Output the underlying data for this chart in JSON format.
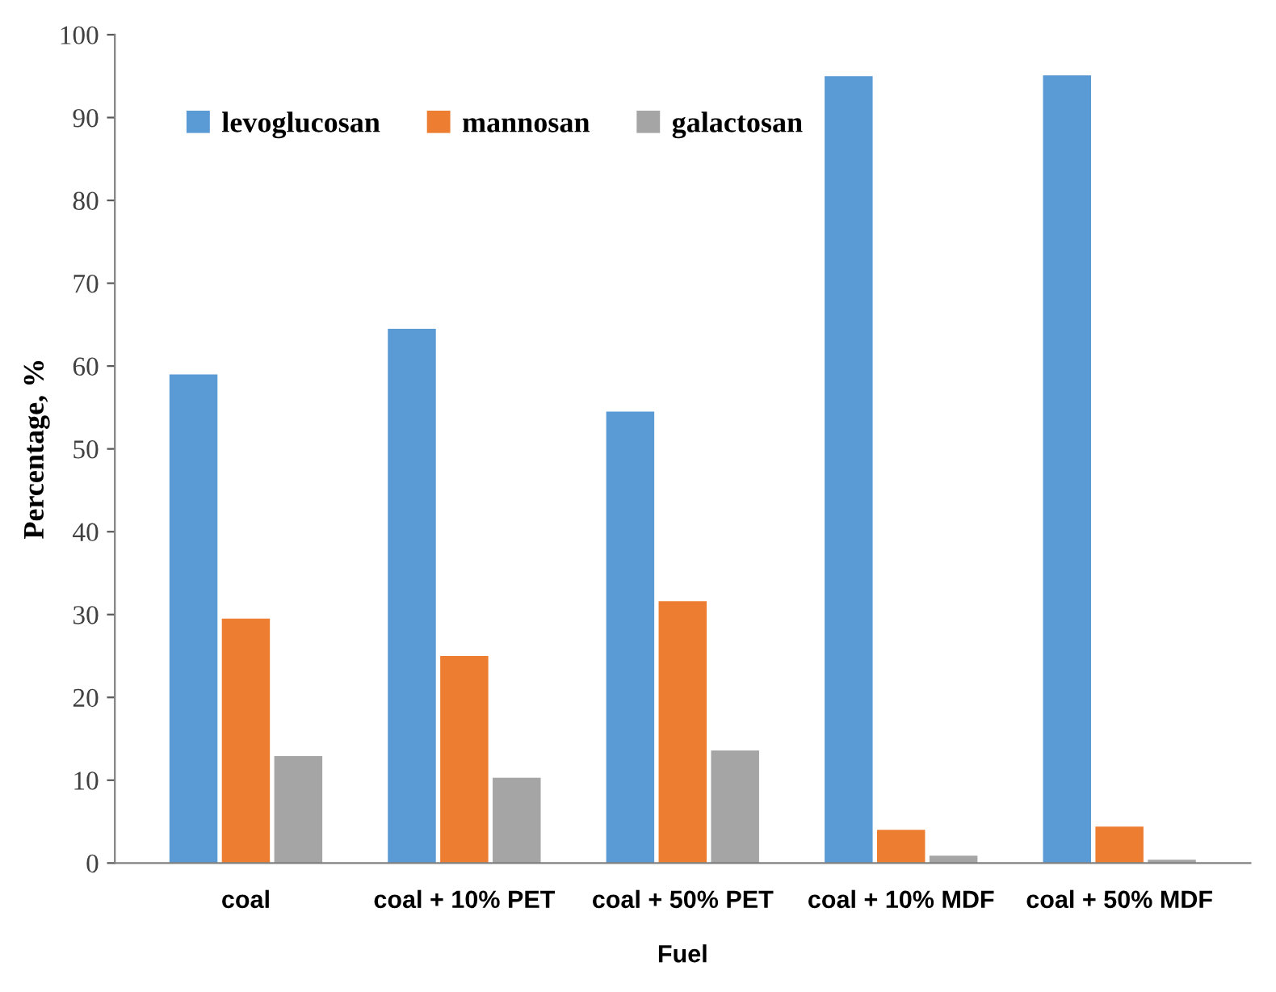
{
  "chart_data": {
    "type": "bar",
    "xlabel": "Fuel",
    "ylabel": "Percentage, %",
    "categories": [
      "coal",
      "coal + 10% PET",
      "coal + 50% PET",
      "coal + 10% MDF",
      "coal + 50% MDF"
    ],
    "series": [
      {
        "name": "levoglucosan",
        "color": "#5b9bd5",
        "values": [
          59.0,
          64.5,
          54.5,
          95.0,
          95.1
        ]
      },
      {
        "name": "mannosan",
        "color": "#ed7d31",
        "values": [
          29.5,
          25.0,
          31.6,
          4.0,
          4.4
        ]
      },
      {
        "name": "galactosan",
        "color": "#a5a5a5",
        "values": [
          12.9,
          10.3,
          13.6,
          0.9,
          0.4
        ]
      }
    ],
    "ylim": [
      0,
      100
    ],
    "yticks": [
      0,
      10,
      20,
      30,
      40,
      50,
      60,
      70,
      80,
      90,
      100
    ],
    "grid": false,
    "legend": "top left"
  }
}
